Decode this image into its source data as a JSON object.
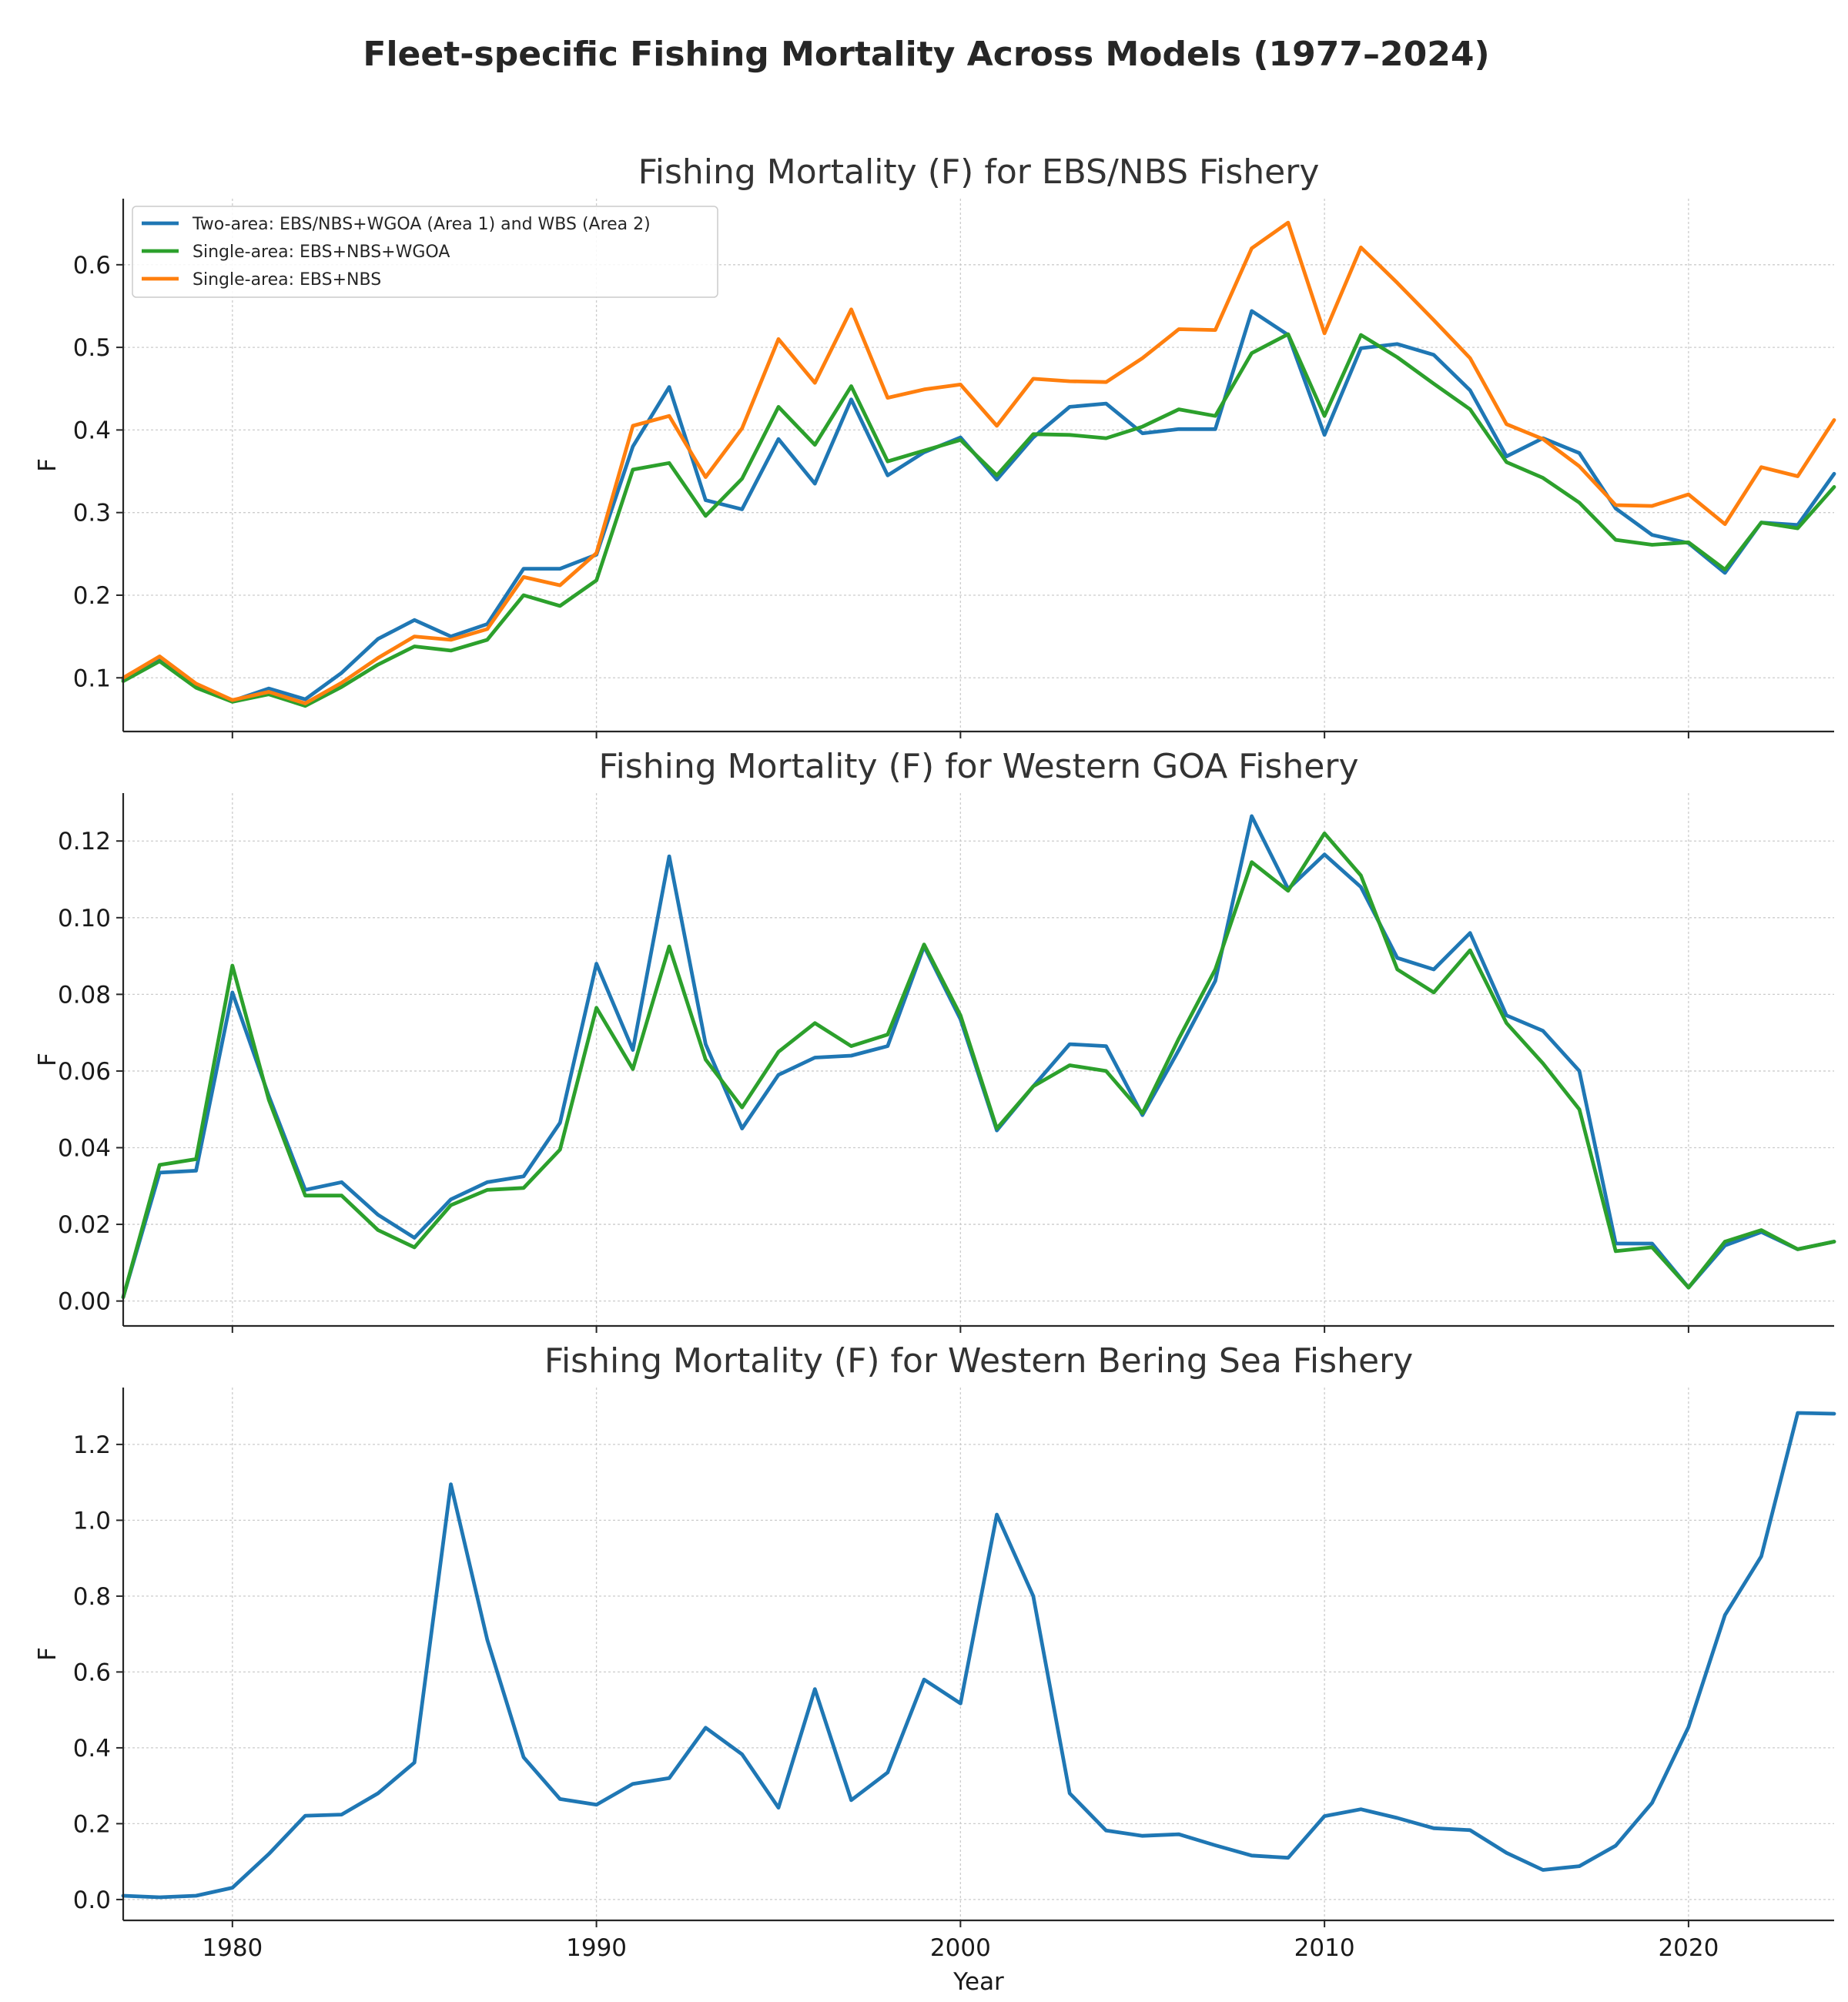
{
  "suptitle": "Fleet-specific Fishing Mortality Across Models (1977–2024)",
  "colors": {
    "blue": "#1f77b4",
    "green": "#2ca02c",
    "orange": "#ff7f0e",
    "grid": "#cccccc",
    "text": "#262626"
  },
  "chart_data": [
    {
      "type": "line",
      "title": "Fishing Mortality (F) for EBS/NBS Fishery",
      "xlabel": "",
      "ylabel": "F",
      "xlim": [
        1977,
        2024
      ],
      "ylim": [
        0.035,
        0.68
      ],
      "xticks": [
        1980,
        1990,
        2000,
        2010,
        2020
      ],
      "xtick_labels": [
        "1980",
        "1990",
        "2000",
        "2010",
        "2020"
      ],
      "show_xtick_labels": false,
      "yticks": [
        0.1,
        0.2,
        0.3,
        0.4,
        0.5,
        0.6
      ],
      "ytick_labels": [
        "0.1",
        "0.2",
        "0.3",
        "0.4",
        "0.5",
        "0.6"
      ],
      "grid": true,
      "legend_position": "top-left",
      "x": [
        1977,
        1978,
        1979,
        1980,
        1981,
        1982,
        1983,
        1984,
        1985,
        1986,
        1987,
        1988,
        1989,
        1990,
        1991,
        1992,
        1993,
        1994,
        1995,
        1996,
        1997,
        1998,
        1999,
        2000,
        2001,
        2002,
        2003,
        2004,
        2005,
        2006,
        2007,
        2008,
        2009,
        2010,
        2011,
        2012,
        2013,
        2014,
        2015,
        2016,
        2017,
        2018,
        2019,
        2020,
        2021,
        2022,
        2023,
        2024
      ],
      "series": [
        {
          "name": "Two-area: EBS/NBS+WGOA (Area 1) and WBS (Area 2)",
          "color": "#1f77b4",
          "values": [
            0.098,
            0.121,
            0.09,
            0.072,
            0.087,
            0.074,
            0.106,
            0.147,
            0.17,
            0.15,
            0.165,
            0.232,
            0.232,
            0.249,
            0.38,
            0.452,
            0.315,
            0.304,
            0.389,
            0.335,
            0.437,
            0.345,
            0.373,
            0.391,
            0.34,
            0.391,
            0.428,
            0.432,
            0.396,
            0.401,
            0.401,
            0.544,
            0.515,
            0.394,
            0.499,
            0.504,
            0.491,
            0.448,
            0.368,
            0.39,
            0.372,
            0.305,
            0.273,
            0.263,
            0.227,
            0.288,
            0.285,
            0.347
          ]
        },
        {
          "name": "Single-area: EBS+NBS+WGOA",
          "color": "#2ca02c",
          "values": [
            0.096,
            0.12,
            0.088,
            0.071,
            0.08,
            0.066,
            0.089,
            0.116,
            0.138,
            0.133,
            0.146,
            0.2,
            0.187,
            0.218,
            0.352,
            0.36,
            0.296,
            0.341,
            0.428,
            0.382,
            0.453,
            0.362,
            0.375,
            0.388,
            0.345,
            0.395,
            0.394,
            0.39,
            0.404,
            0.425,
            0.417,
            0.493,
            0.516,
            0.417,
            0.515,
            0.488,
            0.456,
            0.425,
            0.361,
            0.342,
            0.312,
            0.267,
            0.261,
            0.264,
            0.231,
            0.288,
            0.281,
            0.331
          ]
        },
        {
          "name": "Single-area: EBS+NBS",
          "color": "#ff7f0e",
          "values": [
            0.1,
            0.126,
            0.093,
            0.073,
            0.083,
            0.069,
            0.094,
            0.124,
            0.15,
            0.146,
            0.159,
            0.222,
            0.212,
            0.251,
            0.405,
            0.417,
            0.343,
            0.402,
            0.51,
            0.457,
            0.546,
            0.439,
            0.449,
            0.455,
            0.405,
            0.462,
            0.459,
            0.458,
            0.487,
            0.522,
            0.521,
            0.62,
            0.651,
            0.517,
            0.621,
            0.578,
            0.533,
            0.487,
            0.407,
            0.389,
            0.356,
            0.309,
            0.308,
            0.322,
            0.286,
            0.355,
            0.344,
            0.412
          ]
        }
      ]
    },
    {
      "type": "line",
      "title": "Fishing Mortality (F) for Western GOA Fishery",
      "xlabel": "",
      "ylabel": "F",
      "xlim": [
        1977,
        2024
      ],
      "ylim": [
        -0.0065,
        0.1325
      ],
      "xticks": [
        1980,
        1990,
        2000,
        2010,
        2020
      ],
      "xtick_labels": [
        "1980",
        "1990",
        "2000",
        "2010",
        "2020"
      ],
      "show_xtick_labels": false,
      "yticks": [
        0.0,
        0.02,
        0.04,
        0.06,
        0.08,
        0.1,
        0.12
      ],
      "ytick_labels": [
        "0.00",
        "0.02",
        "0.04",
        "0.06",
        "0.08",
        "0.10",
        "0.12"
      ],
      "grid": true,
      "x": [
        1977,
        1978,
        1979,
        1980,
        1981,
        1982,
        1983,
        1984,
        1985,
        1986,
        1987,
        1988,
        1989,
        1990,
        1991,
        1992,
        1993,
        1994,
        1995,
        1996,
        1997,
        1998,
        1999,
        2000,
        2001,
        2002,
        2003,
        2004,
        2005,
        2006,
        2007,
        2008,
        2009,
        2010,
        2011,
        2012,
        2013,
        2014,
        2015,
        2016,
        2017,
        2018,
        2019,
        2020,
        2021,
        2022,
        2023,
        2024
      ],
      "series": [
        {
          "name": "Two-area: EBS/NBS+WGOA (Area 1) and WBS (Area 2)",
          "color": "#1f77b4",
          "values": [
            0.001,
            0.0335,
            0.034,
            0.0805,
            0.0535,
            0.029,
            0.031,
            0.0225,
            0.0165,
            0.0265,
            0.031,
            0.0325,
            0.0465,
            0.088,
            0.0655,
            0.116,
            0.067,
            0.045,
            0.059,
            0.0635,
            0.064,
            0.0665,
            0.0925,
            0.0735,
            0.0445,
            0.056,
            0.067,
            0.0665,
            0.0485,
            0.0655,
            0.0835,
            0.1265,
            0.1075,
            0.1165,
            0.108,
            0.0895,
            0.0865,
            0.096,
            0.0745,
            0.0705,
            0.06,
            0.015,
            0.015,
            0.0035,
            0.0145,
            0.018,
            0.0135,
            0.0155
          ]
        },
        {
          "name": "Single-area: EBS+NBS+WGOA",
          "color": "#2ca02c",
          "values": [
            0.001,
            0.0355,
            0.037,
            0.0875,
            0.0525,
            0.0275,
            0.0275,
            0.0185,
            0.014,
            0.025,
            0.029,
            0.0295,
            0.0395,
            0.0765,
            0.0605,
            0.0925,
            0.063,
            0.0505,
            0.065,
            0.0725,
            0.0665,
            0.0695,
            0.093,
            0.0745,
            0.045,
            0.056,
            0.0615,
            0.06,
            0.049,
            0.0685,
            0.0865,
            0.1145,
            0.107,
            0.122,
            0.111,
            0.0865,
            0.0805,
            0.0915,
            0.0725,
            0.062,
            0.05,
            0.013,
            0.014,
            0.0035,
            0.0155,
            0.0185,
            0.0135,
            0.0155
          ]
        }
      ]
    },
    {
      "type": "line",
      "title": "Fishing Mortality (F) for Western Bering Sea Fishery",
      "xlabel": "Year",
      "ylabel": "F",
      "xlim": [
        1977,
        2024
      ],
      "ylim": [
        -0.055,
        1.35
      ],
      "xticks": [
        1980,
        1990,
        2000,
        2010,
        2020
      ],
      "xtick_labels": [
        "1980",
        "1990",
        "2000",
        "2010",
        "2020"
      ],
      "show_xtick_labels": true,
      "yticks": [
        0.0,
        0.2,
        0.4,
        0.6,
        0.8,
        1.0,
        1.2
      ],
      "ytick_labels": [
        "0.0",
        "0.2",
        "0.4",
        "0.6",
        "0.8",
        "1.0",
        "1.2"
      ],
      "grid": true,
      "x": [
        1977,
        1978,
        1979,
        1980,
        1981,
        1982,
        1983,
        1984,
        1985,
        1986,
        1987,
        1988,
        1989,
        1990,
        1991,
        1992,
        1993,
        1994,
        1995,
        1996,
        1997,
        1998,
        1999,
        2000,
        2001,
        2002,
        2003,
        2004,
        2005,
        2006,
        2007,
        2008,
        2009,
        2010,
        2011,
        2012,
        2013,
        2014,
        2015,
        2016,
        2017,
        2018,
        2019,
        2020,
        2021,
        2022,
        2023,
        2024
      ],
      "series": [
        {
          "name": "Two-area: EBS/NBS+WGOA (Area 1) and WBS (Area 2)",
          "color": "#1f77b4",
          "values": [
            0.01,
            0.006,
            0.01,
            0.031,
            0.12,
            0.221,
            0.224,
            0.28,
            0.361,
            1.095,
            0.685,
            0.375,
            0.265,
            0.25,
            0.305,
            0.32,
            0.453,
            0.383,
            0.242,
            0.555,
            0.262,
            0.335,
            0.58,
            0.517,
            1.015,
            0.8,
            0.28,
            0.182,
            0.168,
            0.172,
            0.143,
            0.116,
            0.11,
            0.22,
            0.238,
            0.215,
            0.188,
            0.183,
            0.123,
            0.078,
            0.088,
            0.142,
            0.255,
            0.455,
            0.75,
            0.905,
            1.283,
            1.281
          ]
        }
      ]
    }
  ]
}
